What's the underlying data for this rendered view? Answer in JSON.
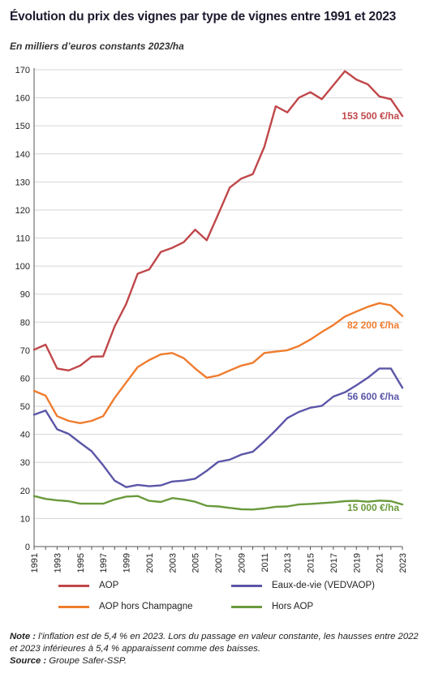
{
  "chart_data": {
    "type": "line",
    "title": "Évolution du prix des vignes par type de vignes entre 1991 et 2023",
    "subtitle": "En milliers d’euros constants 2023/ha",
    "x": [
      1991,
      1992,
      1993,
      1994,
      1995,
      1996,
      1997,
      1998,
      1999,
      2000,
      2001,
      2002,
      2003,
      2004,
      2005,
      2006,
      2007,
      2008,
      2009,
      2010,
      2011,
      2012,
      2013,
      2014,
      2015,
      2016,
      2017,
      2018,
      2019,
      2020,
      2021,
      2022,
      2023
    ],
    "x_tick_labels": [
      "1991",
      "1993",
      "1995",
      "1997",
      "1999",
      "2001",
      "2003",
      "2005",
      "2007",
      "2009",
      "2011",
      "2013",
      "2015",
      "2017",
      "2019",
      "2021",
      "2023"
    ],
    "ylim": [
      0,
      170
    ],
    "y_ticks": [
      0,
      10,
      20,
      30,
      40,
      50,
      60,
      70,
      80,
      90,
      100,
      110,
      120,
      130,
      140,
      150,
      160,
      170
    ],
    "series": [
      {
        "name": "AOP",
        "color": "#c0474a",
        "values": [
          70.2,
          72.0,
          63.5,
          62.8,
          64.5,
          67.7,
          67.8,
          78.5,
          86.5,
          97.3,
          98.8,
          105.0,
          106.5,
          108.5,
          113.0,
          109.2,
          118.5,
          128.0,
          131.2,
          132.8,
          142.5,
          157.0,
          154.8,
          160.0,
          162.0,
          159.5,
          164.5,
          169.5,
          166.5,
          164.8,
          160.5,
          159.5,
          153.5
        ],
        "end_label": "153 500 €/ha"
      },
      {
        "name": "AOP hors Champagne",
        "color": "#ef7c2e",
        "values": [
          55.5,
          53.8,
          46.5,
          44.8,
          44.0,
          44.8,
          46.5,
          53.0,
          58.5,
          64.0,
          66.5,
          68.5,
          69.0,
          67.2,
          63.5,
          60.2,
          61.0,
          62.8,
          64.5,
          65.5,
          69.0,
          69.5,
          70.0,
          71.5,
          73.8,
          76.5,
          79.0,
          82.0,
          83.8,
          85.5,
          86.8,
          86.0,
          82.2
        ],
        "end_label": "82 200 €/ha"
      },
      {
        "name": "Eaux-de-vie (VEDVAOP)",
        "color": "#5b56a8",
        "values": [
          47.0,
          48.5,
          41.8,
          40.2,
          37.0,
          34.0,
          29.0,
          23.5,
          21.2,
          22.0,
          21.5,
          21.8,
          23.2,
          23.5,
          24.2,
          27.0,
          30.2,
          31.0,
          32.8,
          33.8,
          37.5,
          41.5,
          45.8,
          48.0,
          49.5,
          50.2,
          53.5,
          55.0,
          57.5,
          60.2,
          63.5,
          63.5,
          56.6
        ],
        "end_label": "56 600 €/ha"
      },
      {
        "name": "Hors AOP",
        "color": "#6a9a3c",
        "values": [
          18.0,
          17.0,
          16.5,
          16.2,
          15.3,
          15.3,
          15.3,
          16.8,
          17.8,
          18.0,
          16.3,
          15.9,
          17.3,
          16.8,
          16.0,
          14.5,
          14.3,
          13.8,
          13.3,
          13.2,
          13.6,
          14.2,
          14.3,
          15.0,
          15.2,
          15.5,
          15.8,
          16.2,
          16.3,
          16.0,
          16.4,
          16.2,
          15.0
        ],
        "end_label": "15 000 €/ha"
      }
    ]
  },
  "legend": {
    "aop": "AOP",
    "eaux": "Eaux-de-vie (VEDVAOP)",
    "aop_hc": "AOP hors Champagne",
    "hors": "Hors AOP"
  },
  "note": {
    "label": "Note :",
    "text": "l’inflation est de 5,4 % en 2023. Lors du passage en valeur constante, les hausses entre 2022 et 2023 inférieures à 5,4 % apparaissent comme des baisses.",
    "source_label": "Source :",
    "source_text": "Groupe Safer-SSP."
  }
}
